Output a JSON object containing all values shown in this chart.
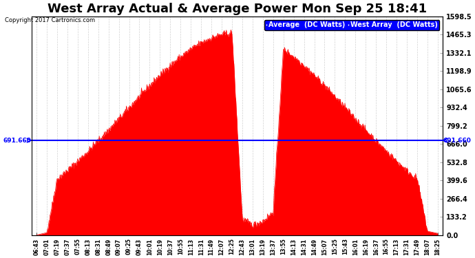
{
  "title": "West Array Actual & Average Power Mon Sep 25 18:41",
  "copyright": "Copyright 2017 Cartronics.com",
  "legend_average": "Average  (DC Watts)",
  "legend_west": "West Array  (DC Watts)",
  "average_value": 691.66,
  "ymax": 1598.5,
  "ymin": 0.0,
  "yticks": [
    0.0,
    133.2,
    266.4,
    399.6,
    532.8,
    666.0,
    799.2,
    932.4,
    1065.6,
    1198.9,
    1332.1,
    1465.3,
    1598.5
  ],
  "avg_label": "691.660",
  "background_color": "#ffffff",
  "fill_color": "#ff0000",
  "line_color": "#ff0000",
  "avg_line_color": "#0000ff",
  "grid_color": "#cccccc",
  "title_fontsize": 13,
  "xtick_labels": [
    "06:43",
    "07:01",
    "07:19",
    "07:37",
    "07:55",
    "08:13",
    "08:31",
    "08:49",
    "09:07",
    "09:25",
    "09:43",
    "10:01",
    "10:19",
    "10:37",
    "10:55",
    "11:13",
    "11:31",
    "11:49",
    "12:07",
    "12:25",
    "12:43",
    "13:01",
    "13:19",
    "13:37",
    "13:55",
    "14:13",
    "14:31",
    "14:49",
    "15:07",
    "15:25",
    "15:43",
    "16:01",
    "16:19",
    "16:37",
    "16:55",
    "17:13",
    "17:31",
    "17:49",
    "18:07",
    "18:25"
  ]
}
